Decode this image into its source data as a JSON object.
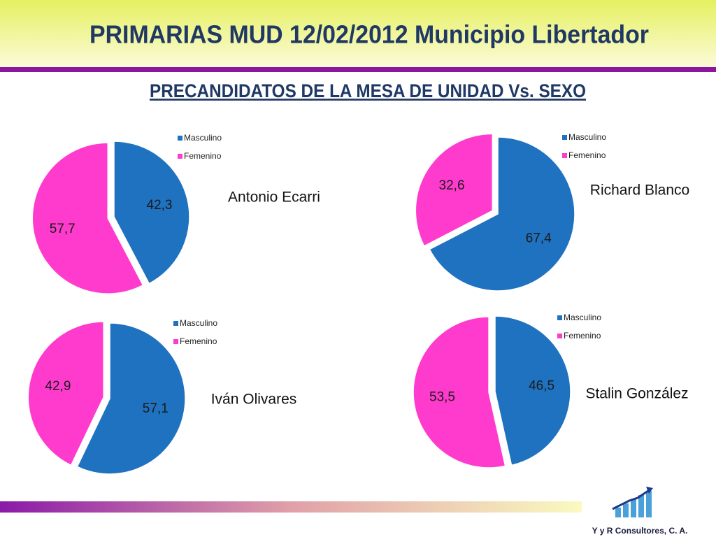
{
  "title": "PRIMARIAS MUD 12/02/2012  Municipio Libertador",
  "subtitle": "PRECANDIDATOS DE LA MESA DE UNIDAD  Vs.  SEXO",
  "footer": "Y y R Consultores, C. A.",
  "chart_data": [
    {
      "type": "pie",
      "title": "Antonio Ecarri",
      "categories": [
        "Masculino",
        "Femenino"
      ],
      "values": [
        42.3,
        57.7
      ],
      "value_labels": [
        "42,3",
        "57,7"
      ],
      "colors": [
        "#1f72c0",
        "#ff3bcd"
      ]
    },
    {
      "type": "pie",
      "title": "Richard Blanco",
      "categories": [
        "Masculino",
        "Femenino"
      ],
      "values": [
        67.4,
        32.6
      ],
      "value_labels": [
        "67,4",
        "32,6"
      ],
      "colors": [
        "#1f72c0",
        "#ff3bcd"
      ]
    },
    {
      "type": "pie",
      "title": "Iván Olivares",
      "categories": [
        "Masculino",
        "Femenino"
      ],
      "values": [
        57.1,
        42.9
      ],
      "value_labels": [
        "57,1",
        "42,9"
      ],
      "colors": [
        "#1f72c0",
        "#ff3bcd"
      ]
    },
    {
      "type": "pie",
      "title": "Stalin González",
      "categories": [
        "Masculino",
        "Femenino"
      ],
      "values": [
        46.5,
        53.5
      ],
      "value_labels": [
        "46,5",
        "53,5"
      ],
      "colors": [
        "#1f72c0",
        "#ff3bcd"
      ]
    }
  ]
}
